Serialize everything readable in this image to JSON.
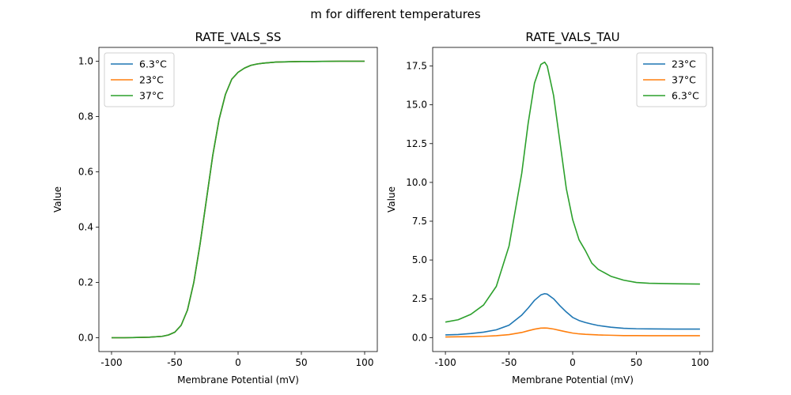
{
  "suptitle": "m for different temperatures",
  "colors": {
    "c1": "#1f77b4",
    "c2": "#ff7f0e",
    "c3": "#2ca02c"
  },
  "chart_data": [
    {
      "type": "line",
      "title": "RATE_VALS_SS",
      "xlabel": "Membrane Potential (mV)",
      "ylabel": "Value",
      "xlim": [
        -110,
        110
      ],
      "ylim": [
        -0.05,
        1.05
      ],
      "xticks": [
        -100,
        -50,
        0,
        50,
        100
      ],
      "yticks": [
        0.0,
        0.2,
        0.4,
        0.6,
        0.8,
        1.0
      ],
      "ytick_labels": [
        "0.0",
        "0.2",
        "0.4",
        "0.6",
        "0.8",
        "1.0"
      ],
      "legend_position": "upper-left",
      "x": [
        -100,
        -90,
        -80,
        -70,
        -60,
        -55,
        -50,
        -45,
        -40,
        -35,
        -30,
        -25,
        -20,
        -15,
        -10,
        -5,
        0,
        5,
        10,
        15,
        20,
        30,
        40,
        50,
        60,
        80,
        100
      ],
      "series": [
        {
          "name": "6.3°C",
          "color": "#1f77b4",
          "values": [
            0.0,
            0.0,
            0.001,
            0.002,
            0.005,
            0.01,
            0.02,
            0.045,
            0.1,
            0.2,
            0.34,
            0.5,
            0.66,
            0.79,
            0.88,
            0.935,
            0.96,
            0.975,
            0.985,
            0.99,
            0.993,
            0.997,
            0.998,
            0.999,
            0.999,
            1.0,
            1.0
          ]
        },
        {
          "name": "23°C",
          "color": "#ff7f0e",
          "values": [
            0.0,
            0.0,
            0.001,
            0.002,
            0.005,
            0.01,
            0.02,
            0.045,
            0.1,
            0.2,
            0.34,
            0.5,
            0.66,
            0.79,
            0.88,
            0.935,
            0.96,
            0.975,
            0.985,
            0.99,
            0.993,
            0.997,
            0.998,
            0.999,
            0.999,
            1.0,
            1.0
          ]
        },
        {
          "name": "37°C",
          "color": "#2ca02c",
          "values": [
            0.0,
            0.0,
            0.001,
            0.002,
            0.005,
            0.01,
            0.02,
            0.045,
            0.1,
            0.2,
            0.34,
            0.5,
            0.66,
            0.79,
            0.88,
            0.935,
            0.96,
            0.975,
            0.985,
            0.99,
            0.993,
            0.997,
            0.998,
            0.999,
            0.999,
            1.0,
            1.0
          ]
        }
      ]
    },
    {
      "type": "line",
      "title": "RATE_VALS_TAU",
      "xlabel": "Membrane Potential (mV)",
      "ylabel": "Value",
      "xlim": [
        -110,
        110
      ],
      "ylim": [
        -0.9,
        18.7
      ],
      "xticks": [
        -100,
        -50,
        0,
        50,
        100
      ],
      "yticks": [
        0.0,
        2.5,
        5.0,
        7.5,
        10.0,
        12.5,
        15.0,
        17.5
      ],
      "ytick_labels": [
        "0.0",
        "2.5",
        "5.0",
        "7.5",
        "10.0",
        "12.5",
        "15.0",
        "17.5"
      ],
      "legend_position": "upper-right",
      "x": [
        -100,
        -90,
        -80,
        -70,
        -60,
        -50,
        -40,
        -35,
        -30,
        -25,
        -22,
        -20,
        -15,
        -10,
        -5,
        0,
        5,
        10,
        15,
        20,
        30,
        40,
        50,
        60,
        80,
        100
      ],
      "series": [
        {
          "name": "23°C",
          "color": "#1f77b4",
          "values": [
            0.17,
            0.2,
            0.26,
            0.35,
            0.5,
            0.8,
            1.45,
            1.9,
            2.4,
            2.75,
            2.83,
            2.8,
            2.5,
            2.05,
            1.65,
            1.3,
            1.1,
            0.97,
            0.87,
            0.78,
            0.67,
            0.6,
            0.57,
            0.56,
            0.55,
            0.55
          ]
        },
        {
          "name": "37°C",
          "color": "#ff7f0e",
          "values": [
            0.04,
            0.05,
            0.06,
            0.08,
            0.12,
            0.19,
            0.33,
            0.44,
            0.54,
            0.61,
            0.62,
            0.61,
            0.55,
            0.46,
            0.37,
            0.29,
            0.24,
            0.21,
            0.19,
            0.17,
            0.15,
            0.13,
            0.13,
            0.12,
            0.12,
            0.12
          ]
        },
        {
          "name": "6.3°C",
          "color": "#2ca02c",
          "values": [
            1.0,
            1.15,
            1.5,
            2.1,
            3.3,
            5.9,
            10.6,
            13.8,
            16.4,
            17.6,
            17.75,
            17.5,
            15.6,
            12.6,
            9.6,
            7.6,
            6.3,
            5.6,
            4.8,
            4.4,
            3.95,
            3.7,
            3.55,
            3.5,
            3.47,
            3.45
          ]
        }
      ]
    }
  ]
}
